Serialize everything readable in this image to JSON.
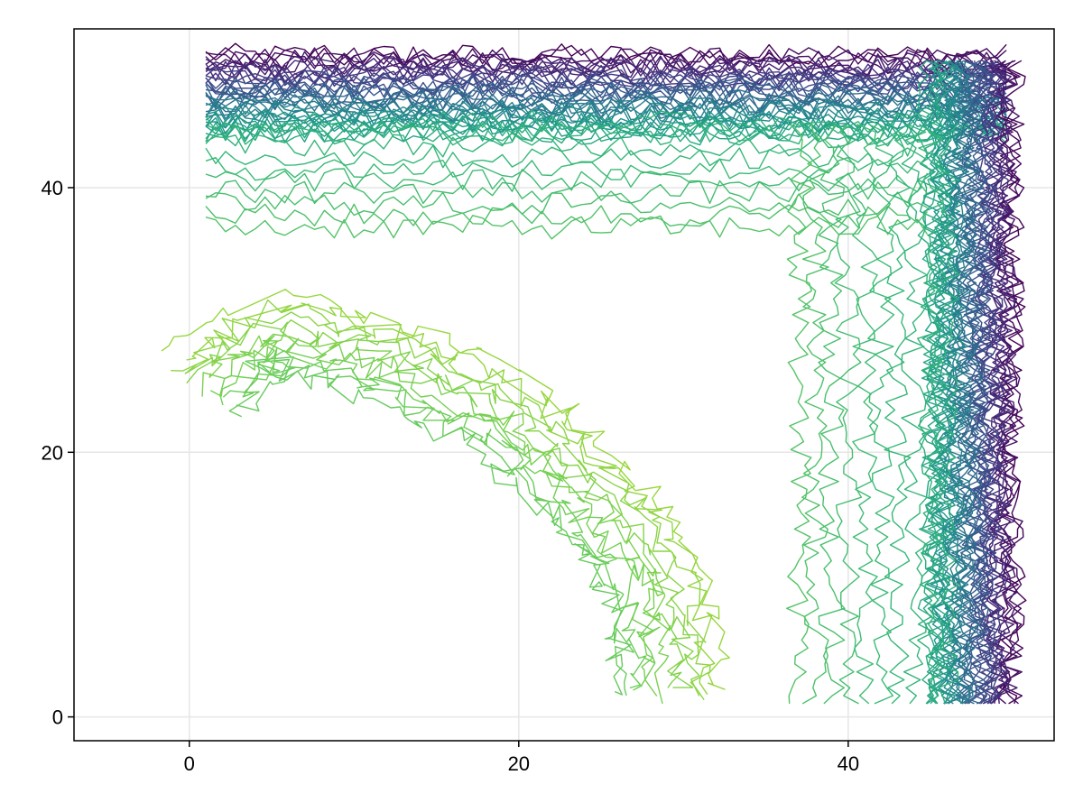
{
  "chart_data": {
    "type": "contour",
    "title": "",
    "xlabel": "",
    "ylabel": "",
    "xlim": [
      -7,
      52.5
    ],
    "ylim": [
      -1.8,
      52
    ],
    "xticks": [
      {
        "value": 0,
        "label": "0"
      },
      {
        "value": 20,
        "label": "20"
      },
      {
        "value": 40,
        "label": "40"
      }
    ],
    "yticks": [
      {
        "value": 0,
        "label": "0"
      },
      {
        "value": 20,
        "label": "20"
      },
      {
        "value": 40,
        "label": "40"
      }
    ],
    "grid": true,
    "legend": "none",
    "colormap": "viridis",
    "data_extent": {
      "x": [
        1,
        50
      ],
      "y": [
        1,
        50
      ]
    },
    "features": [
      {
        "name": "top-band",
        "shape": "horizontal-band",
        "x": [
          1,
          50
        ],
        "y": [
          44,
          50
        ],
        "level_low": 0.0,
        "level_high": 0.7,
        "lines": 40
      },
      {
        "name": "right-band",
        "shape": "vertical-band",
        "x": [
          45,
          50
        ],
        "y": [
          1,
          50
        ],
        "level_low": 0.0,
        "level_high": 0.7,
        "lines": 40
      },
      {
        "name": "upper-ridge",
        "shape": "horizontal-band",
        "x": [
          1,
          45
        ],
        "y": [
          37,
          45
        ],
        "level_low": 0.72,
        "level_high": 0.82,
        "lines": 10
      },
      {
        "name": "right-ridge",
        "shape": "vertical-band",
        "x": [
          37,
          46
        ],
        "y": [
          1,
          45
        ],
        "level_low": 0.72,
        "level_high": 0.82,
        "lines": 10
      },
      {
        "name": "arc-ridge",
        "shape": "arc",
        "points": [
          [
            1,
            25
          ],
          [
            5,
            29
          ],
          [
            12,
            27
          ],
          [
            19,
            23
          ],
          [
            25,
            16
          ],
          [
            28,
            11
          ],
          [
            29,
            6
          ],
          [
            29,
            1
          ]
        ],
        "level_low": 0.86,
        "level_high": 0.95,
        "lines": 12
      }
    ],
    "color_stops": [
      {
        "level": 0.0,
        "color": "#440154"
      },
      {
        "level": 0.13,
        "color": "#482878"
      },
      {
        "level": 0.25,
        "color": "#3e4989"
      },
      {
        "level": 0.38,
        "color": "#31688e"
      },
      {
        "level": 0.5,
        "color": "#26828e"
      },
      {
        "level": 0.63,
        "color": "#1f9e89"
      },
      {
        "level": 0.75,
        "color": "#35b779"
      },
      {
        "level": 0.88,
        "color": "#6ece58"
      },
      {
        "level": 1.0,
        "color": "#b5de2b"
      }
    ]
  }
}
